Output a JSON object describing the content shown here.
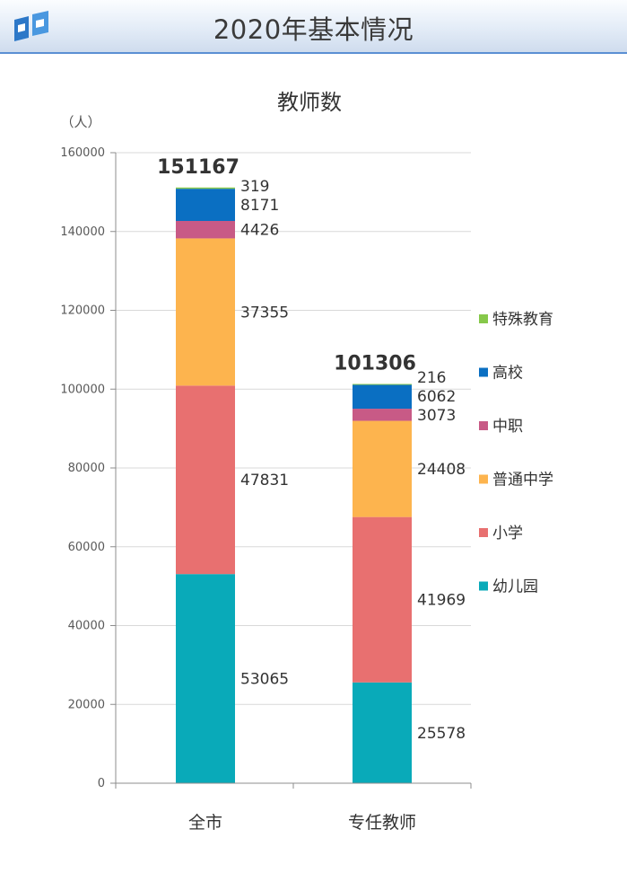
{
  "page_title": "2020年基本情况",
  "chart_data": {
    "type": "bar",
    "stacked": true,
    "title": "教师数",
    "unit_label": "（人）",
    "categories": [
      "全市",
      "专任教师"
    ],
    "series": [
      {
        "name": "幼儿园",
        "color": "#09aab9",
        "values": [
          53065,
          25578
        ]
      },
      {
        "name": "小学",
        "color": "#e87070",
        "values": [
          47831,
          41969
        ]
      },
      {
        "name": "普通中学",
        "color": "#fdb44e",
        "values": [
          37355,
          24408
        ]
      },
      {
        "name": "中职",
        "color": "#c85a86",
        "values": [
          4426,
          3073
        ]
      },
      {
        "name": "高校",
        "color": "#0a6fc2",
        "values": [
          8171,
          6062
        ]
      },
      {
        "name": "特殊教育",
        "color": "#86c84a",
        "values": [
          319,
          216
        ]
      }
    ],
    "totals": [
      151167,
      101306
    ],
    "y_ticks": [
      0,
      20000,
      40000,
      60000,
      80000,
      100000,
      120000,
      140000,
      160000
    ],
    "ylim": [
      0,
      160000
    ],
    "grid": true,
    "legend_position": "right"
  }
}
